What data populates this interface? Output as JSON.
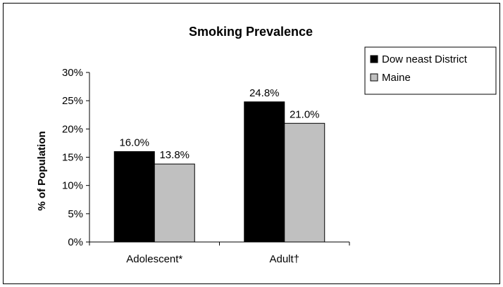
{
  "chart_data": {
    "type": "bar",
    "title": "Smoking Prevalence",
    "ylabel": "% of Population",
    "xlabel": "",
    "categories": [
      "Adolescent*",
      "Adult†"
    ],
    "series": [
      {
        "name": "Dow neast District",
        "values": [
          16.0,
          24.8
        ],
        "labels": [
          "16.0%",
          "24.8%"
        ],
        "color": "#000000"
      },
      {
        "name": "Maine",
        "values": [
          13.8,
          21.0
        ],
        "labels": [
          "13.8%",
          "21.0%"
        ],
        "color": "#c0c0c0"
      }
    ],
    "ylim": [
      0,
      30
    ],
    "yticks": [
      0,
      5,
      10,
      15,
      20,
      25,
      30
    ],
    "ytick_labels": [
      "0%",
      "5%",
      "10%",
      "15%",
      "20%",
      "25%",
      "30%"
    ],
    "grid": false,
    "legend_position": "top-right"
  }
}
